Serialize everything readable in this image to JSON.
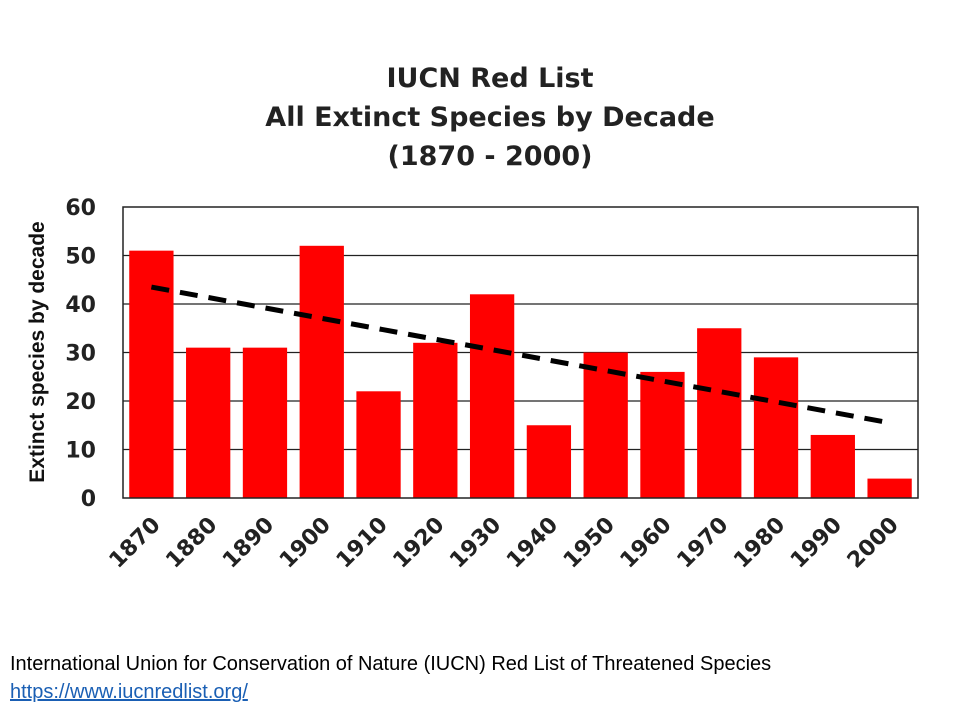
{
  "chart_data": {
    "type": "bar",
    "title": [
      "IUCN Red List",
      "All Extinct Species by Decade",
      "(1870 - 2000)"
    ],
    "xlabel": "",
    "ylabel": "Extinct species by decade",
    "ylim": [
      0,
      60
    ],
    "yticks": [
      0,
      10,
      20,
      30,
      40,
      50,
      60
    ],
    "categories": [
      "1870",
      "1880",
      "1890",
      "1900",
      "1910",
      "1920",
      "1930",
      "1940",
      "1950",
      "1960",
      "1970",
      "1980",
      "1990",
      "2000"
    ],
    "series": [
      {
        "name": "Extinct species",
        "values": [
          51,
          31,
          31,
          52,
          22,
          32,
          42,
          15,
          30,
          26,
          35,
          29,
          13,
          4
        ],
        "color": "#ff0000"
      }
    ],
    "trendline": {
      "style": "dashed",
      "color": "#000000",
      "start_value": 43.5,
      "end_value": 15.5
    },
    "grid": true
  },
  "footer": {
    "source_text": "International Union for Conservation of Nature (IUCN) Red List of Threatened Species",
    "source_url": "https://www.iucnredlist.org/"
  }
}
